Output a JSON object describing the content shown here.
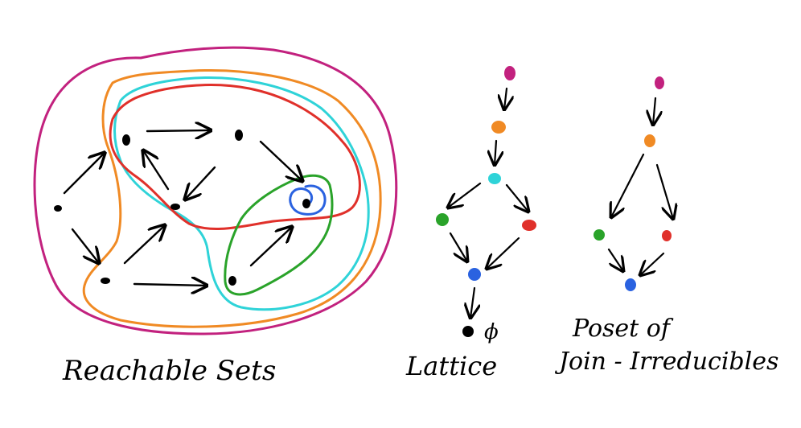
{
  "labels": {
    "reachable_sets": "Reachable Sets",
    "lattice": "Lattice",
    "empty_set": "ϕ",
    "poset_line1": "Poset of",
    "poset_line2": "Join - Irreducibles"
  },
  "colors": {
    "magenta": "#c2217e",
    "orange": "#f08a24",
    "cyan": "#2fd3d8",
    "red": "#e0302a",
    "green": "#2aa32a",
    "blue": "#2a62e0",
    "black": "#000000"
  }
}
